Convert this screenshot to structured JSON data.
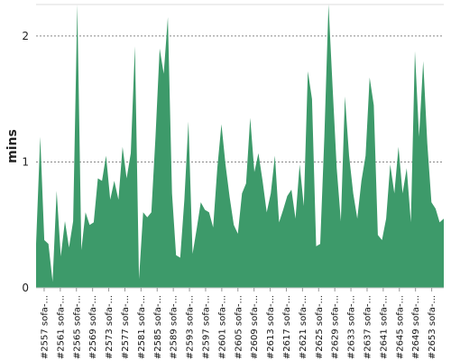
{
  "chart_data": {
    "type": "area",
    "ylabel": "mins",
    "ylim": [
      0,
      2.25
    ],
    "y_ticks": [
      0,
      1,
      2
    ],
    "grid": "horizontal dashed",
    "color": "#3d9a6a",
    "x_tick_labels": [
      "#2557 sofa-...",
      "#2561 sofa-...",
      "#2565 sofa-...",
      "#2569 sofa-...",
      "#2573 sofa-...",
      "#2577 sofa-...",
      "#2581 sofa-...",
      "#2585 sofa-...",
      "#2589 sofa-...",
      "#2593 sofa-...",
      "#2597 sofa-...",
      "#2601 sofa-...",
      "#2605 sofa-...",
      "#2609 sofa-...",
      "#2613 sofa-...",
      "#2617 sofa-...",
      "#2621 sofa-...",
      "#2625 sofa-...",
      "#2629 sofa-...",
      "#2633 sofa-...",
      "#2637 sofa-...",
      "#2641 sofa-...",
      "#2645 sofa-...",
      "#2649 sofa-...",
      "#2653 sofa-..."
    ],
    "x_start": 2555,
    "x_end": 2656,
    "series": [
      {
        "values": [
          0.35,
          1.2,
          0.38,
          0.35,
          0.05,
          0.77,
          0.25,
          0.53,
          0.32,
          0.53,
          2.3,
          0.3,
          0.6,
          0.5,
          0.52,
          0.87,
          0.85,
          1.05,
          0.7,
          0.85,
          0.7,
          1.12,
          0.87,
          1.07,
          1.92,
          0.07,
          0.6,
          0.56,
          0.6,
          1.2,
          1.9,
          1.7,
          2.15,
          0.75,
          0.26,
          0.24,
          0.7,
          1.32,
          0.27,
          0.47,
          0.68,
          0.62,
          0.6,
          0.48,
          0.95,
          1.3,
          0.98,
          0.72,
          0.5,
          0.43,
          0.75,
          0.83,
          1.35,
          0.92,
          1.07,
          0.85,
          0.6,
          0.75,
          1.05,
          0.52,
          0.62,
          0.73,
          0.78,
          0.55,
          0.98,
          0.65,
          1.72,
          1.5,
          0.33,
          0.35,
          1.2,
          2.35,
          1.6,
          0.95,
          0.53,
          1.52,
          1.05,
          0.75,
          0.55,
          0.85,
          1.05,
          1.67,
          1.45,
          0.42,
          0.38,
          0.55,
          0.98,
          0.75,
          1.12,
          0.75,
          0.95,
          0.52,
          1.88,
          1.2,
          1.8,
          1.15,
          0.68,
          0.63,
          0.52,
          0.55
        ]
      }
    ]
  }
}
